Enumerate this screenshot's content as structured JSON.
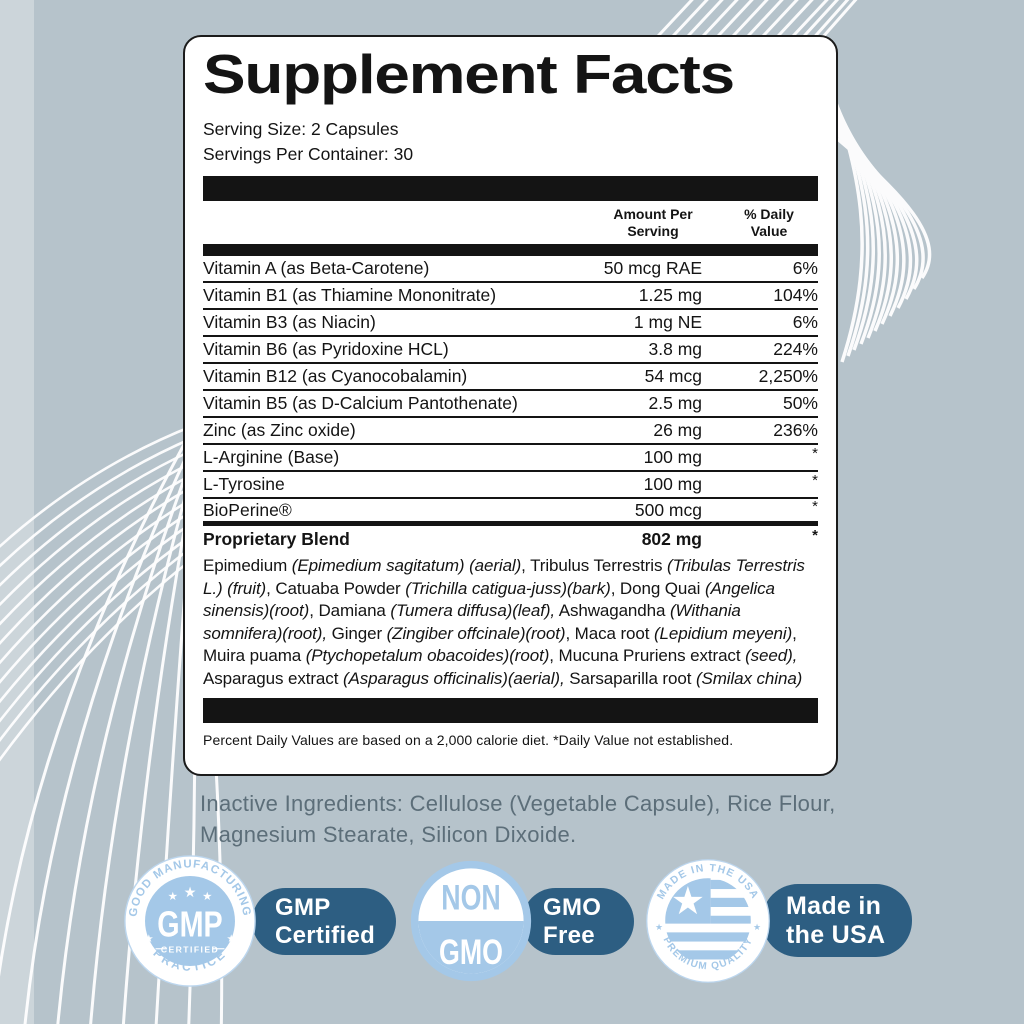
{
  "label": {
    "title": "Supplement Facts",
    "serving_size": "Serving Size: 2 Capsules",
    "servings_per_container": "Servings Per Container: 30",
    "columns": {
      "amount_header": "Amount Per\nServing",
      "daily_value_header": "% Daily\nValue"
    },
    "rows": [
      {
        "name": "Vitamin A (as Beta-Carotene)",
        "amount": "50 mcg RAE",
        "dv": "6%"
      },
      {
        "name": "Vitamin B1 (as Thiamine Mononitrate)",
        "amount": "1.25 mg",
        "dv": "104%"
      },
      {
        "name": "Vitamin B3 (as Niacin)",
        "amount": "1 mg NE",
        "dv": "6%"
      },
      {
        "name": "Vitamin B6 (as Pyridoxine HCL)",
        "amount": "3.8 mg",
        "dv": "224%"
      },
      {
        "name": "Vitamin B12 (as Cyanocobalamin)",
        "amount": "54 mcg",
        "dv": "2,250%"
      },
      {
        "name": "Vitamin B5 (as D-Calcium Pantothenate)",
        "amount": "2.5 mg",
        "dv": "50%"
      },
      {
        "name": "Zinc (as Zinc oxide)",
        "amount": "26 mg",
        "dv": "236%"
      },
      {
        "name": "L-Arginine (Base)",
        "amount": "100 mg",
        "dv": "*"
      },
      {
        "name": "L-Tyrosine",
        "amount": "100 mg",
        "dv": "*"
      },
      {
        "name": "BioPerine®",
        "amount": "500 mcg",
        "dv": "*",
        "thick_bottom": true
      },
      {
        "name": "Proprietary Blend",
        "amount": "802 mg",
        "dv": "*",
        "bold": true
      }
    ],
    "blend_description_segments": [
      {
        "t": "Epimedium ",
        "i": false
      },
      {
        "t": "(Epimedium sagitatum) (aerial)",
        "i": true
      },
      {
        "t": ", Tribulus Terrestris ",
        "i": false
      },
      {
        "t": "(Tribulas Terrestris L.) (fruit)",
        "i": true
      },
      {
        "t": ", Catuaba Powder ",
        "i": false
      },
      {
        "t": "(Trichilla catigua-juss)(bark)",
        "i": true
      },
      {
        "t": ", Dong Quai ",
        "i": false
      },
      {
        "t": "(Angelica sinensis)(root)",
        "i": true
      },
      {
        "t": ", Damiana ",
        "i": false
      },
      {
        "t": "(Tumera diffusa)(leaf),",
        "i": true
      },
      {
        "t": " Ashwagandha ",
        "i": false
      },
      {
        "t": "(Withania somnifera)(root),",
        "i": true
      },
      {
        "t": " Ginger ",
        "i": false
      },
      {
        "t": "(Zingiber offcinale)(root)",
        "i": true
      },
      {
        "t": ", Maca root ",
        "i": false
      },
      {
        "t": "(Lepidium meyeni)",
        "i": true
      },
      {
        "t": ", Muira puama ",
        "i": false
      },
      {
        "t": "(Ptychopetalum obacoides)(root)",
        "i": true
      },
      {
        "t": ", Mucuna Pruriens extract ",
        "i": false
      },
      {
        "t": "(seed),",
        "i": true
      },
      {
        "t": " Asparagus extract ",
        "i": false
      },
      {
        "t": "(Asparagus officinalis)(aerial),",
        "i": true
      },
      {
        "t": " Sarsaparilla root ",
        "i": false
      },
      {
        "t": "(Smilax china)",
        "i": true
      }
    ],
    "footnote": "Percent Daily Values are based on a 2,000 calorie diet. *Daily Value not established."
  },
  "inactive_ingredients": "Inactive Ingredients: Cellulose (Vegetable Capsule), Rice Flour, Magnesium Stearate, Silicon Dixoide.",
  "badges": {
    "gmp": {
      "arc_top": "GOOD MANUFACTURING",
      "arc_bottom": "PRACTICE",
      "center": "GMP",
      "center_sub": "CERTIFIED",
      "pill_line1": "GMP",
      "pill_line2": "Certified"
    },
    "non_gmo": {
      "top": "NON",
      "bottom": "GMO",
      "pill_line1": "GMO",
      "pill_line2": "Free"
    },
    "usa": {
      "arc_top": "MADE IN THE USA",
      "arc_bottom": "PREMIUM QUALITY",
      "pill_line1": "Made in",
      "pill_line2": "the USA"
    }
  },
  "colors": {
    "background": "#b6c3cb",
    "accent_light_blue": "#a4c8e8",
    "pill_blue": "#2d5e82",
    "table_ink": "#141414",
    "muted_text": "#5c6e79"
  }
}
